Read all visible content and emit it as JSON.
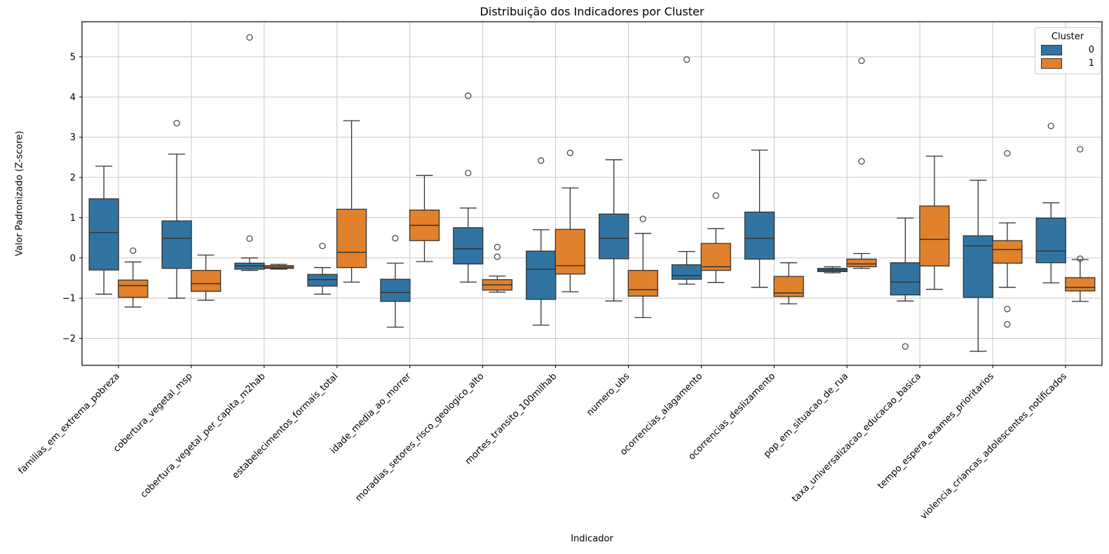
{
  "chart_data": {
    "type": "box",
    "title": "Distribuição dos Indicadores por Cluster",
    "xlabel": "Indicador",
    "ylabel": "Valor Padronizado (Z-score)",
    "ylim": [
      -2.67,
      5.87
    ],
    "yticks": [
      5,
      4,
      3,
      2,
      1,
      0,
      -1,
      -2
    ],
    "grid": true,
    "grid_color": "#c8c8c8",
    "line_color": "#333333",
    "legend": {
      "title": "Cluster",
      "position": "upper right",
      "entries": [
        {
          "label": "0",
          "color": "#3274a1"
        },
        {
          "label": "1",
          "color": "#e1812c"
        }
      ]
    },
    "categories": [
      "familias_em_extrema_pobreza",
      "cobertura_vegetal_msp",
      "cobertura_vegetal_per_capita_m2hab",
      "estabelecimentos_formais_total",
      "idade_media_ao_morrer",
      "moradias_setores_risco_geologico_alto",
      "mortes_transito_100milhab",
      "numero_ubs",
      "ocorrencias_alagamento",
      "ocorrencias_deslizamento",
      "pop_em_situacao_de_rua",
      "taxa_universalizacao_educacao_basica",
      "tempo_espera_exames_prioritarios",
      "violencia_criancas_adolescentes_notificados"
    ],
    "series": [
      {
        "name": "0",
        "color": "#3274a1",
        "boxes": [
          {
            "whislo": -0.9,
            "q1": -0.3,
            "med": 0.63,
            "q3": 1.47,
            "whishi": 2.28,
            "fliers": []
          },
          {
            "whislo": -1.0,
            "q1": -0.26,
            "med": 0.49,
            "q3": 0.92,
            "whishi": 2.58,
            "fliers": [
              3.35
            ]
          },
          {
            "whislo": -0.31,
            "q1": -0.28,
            "med": -0.2,
            "q3": -0.13,
            "whishi": 0.0,
            "fliers": [
              5.48,
              0.48
            ]
          },
          {
            "whislo": -0.9,
            "q1": -0.7,
            "med": -0.54,
            "q3": -0.41,
            "whishi": -0.24,
            "fliers": [
              0.3
            ]
          },
          {
            "whislo": -1.72,
            "q1": -1.08,
            "med": -0.86,
            "q3": -0.53,
            "whishi": -0.13,
            "fliers": [
              0.49
            ]
          },
          {
            "whislo": -0.6,
            "q1": -0.15,
            "med": 0.23,
            "q3": 0.75,
            "whishi": 1.24,
            "fliers": [
              4.03,
              2.11
            ]
          },
          {
            "whislo": -1.67,
            "q1": -1.03,
            "med": -0.28,
            "q3": 0.17,
            "whishi": 0.7,
            "fliers": [
              2.42
            ]
          },
          {
            "whislo": -1.07,
            "q1": -0.02,
            "med": 0.49,
            "q3": 1.09,
            "whishi": 2.44,
            "fliers": []
          },
          {
            "whislo": -0.65,
            "q1": -0.53,
            "med": -0.44,
            "q3": -0.17,
            "whishi": 0.16,
            "fliers": [
              4.93
            ]
          },
          {
            "whislo": -0.73,
            "q1": -0.03,
            "med": 0.49,
            "q3": 1.14,
            "whishi": 2.68,
            "fliers": []
          },
          {
            "whislo": -0.37,
            "q1": -0.34,
            "med": -0.3,
            "q3": -0.26,
            "whishi": -0.22,
            "fliers": []
          },
          {
            "whislo": -1.07,
            "q1": -0.92,
            "med": -0.6,
            "q3": -0.12,
            "whishi": 0.99,
            "fliers": [
              -2.2
            ]
          },
          {
            "whislo": -2.32,
            "q1": -0.98,
            "med": 0.3,
            "q3": 0.55,
            "whishi": 1.93,
            "fliers": []
          },
          {
            "whislo": -0.62,
            "q1": -0.12,
            "med": 0.17,
            "q3": 0.99,
            "whishi": 1.37,
            "fliers": [
              3.28
            ]
          }
        ]
      },
      {
        "name": "1",
        "color": "#e1812c",
        "boxes": [
          {
            "whislo": -1.22,
            "q1": -0.98,
            "med": -0.69,
            "q3": -0.55,
            "whishi": -0.1,
            "fliers": [
              0.18
            ]
          },
          {
            "whislo": -1.05,
            "q1": -0.83,
            "med": -0.64,
            "q3": -0.31,
            "whishi": 0.07,
            "fliers": []
          },
          {
            "whislo": -0.28,
            "q1": -0.26,
            "med": -0.23,
            "q3": -0.19,
            "whishi": -0.16,
            "fliers": []
          },
          {
            "whislo": -0.6,
            "q1": -0.24,
            "med": 0.14,
            "q3": 1.21,
            "whishi": 3.41,
            "fliers": []
          },
          {
            "whislo": -0.09,
            "q1": 0.43,
            "med": 0.81,
            "q3": 1.19,
            "whishi": 2.05,
            "fliers": []
          },
          {
            "whislo": -0.85,
            "q1": -0.8,
            "med": -0.67,
            "q3": -0.54,
            "whishi": -0.45,
            "fliers": [
              0.27,
              0.03
            ]
          },
          {
            "whislo": -0.84,
            "q1": -0.4,
            "med": -0.19,
            "q3": 0.71,
            "whishi": 1.74,
            "fliers": [
              2.61
            ]
          },
          {
            "whislo": -1.48,
            "q1": -0.95,
            "med": -0.79,
            "q3": -0.31,
            "whishi": 0.61,
            "fliers": [
              0.97
            ]
          },
          {
            "whislo": -0.61,
            "q1": -0.31,
            "med": -0.22,
            "q3": 0.36,
            "whishi": 0.73,
            "fliers": [
              1.55
            ]
          },
          {
            "whislo": -1.14,
            "q1": -0.96,
            "med": -0.87,
            "q3": -0.46,
            "whishi": -0.12,
            "fliers": []
          },
          {
            "whislo": -0.26,
            "q1": -0.22,
            "med": -0.15,
            "q3": -0.03,
            "whishi": 0.11,
            "fliers": [
              4.9,
              2.4
            ]
          },
          {
            "whislo": -0.78,
            "q1": -0.2,
            "med": 0.46,
            "q3": 1.29,
            "whishi": 2.53,
            "fliers": []
          },
          {
            "whislo": -0.73,
            "q1": -0.13,
            "med": 0.21,
            "q3": 0.43,
            "whishi": 0.87,
            "fliers": [
              2.6,
              -1.27,
              -1.65
            ]
          },
          {
            "whislo": -1.08,
            "q1": -0.82,
            "med": -0.73,
            "q3": -0.49,
            "whishi": -0.04,
            "fliers": [
              2.7,
              -0.02
            ]
          }
        ]
      }
    ]
  }
}
